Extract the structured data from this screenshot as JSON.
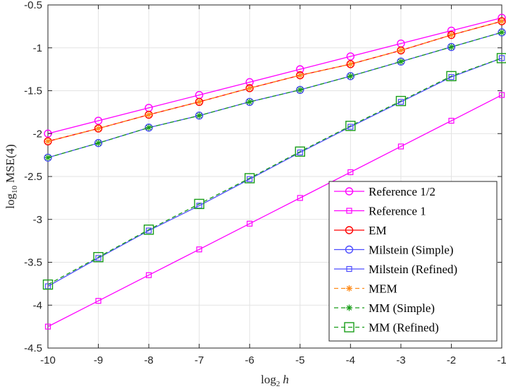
{
  "chart_data": {
    "type": "line",
    "title": "",
    "xlabel": "log₂ h",
    "xlabel_main": "log",
    "xlabel_sub": "2",
    "xlabel_var": "h",
    "ylabel": "log₁₀ MSE(4)",
    "ylabel_main": "log",
    "ylabel_sub": "10",
    "ylabel_rest": "MSE(4)",
    "xlim": [
      -10,
      -1
    ],
    "ylim": [
      -4.5,
      -0.5
    ],
    "grid": true,
    "legend_position": "bottom-right",
    "x": [
      -10,
      -9,
      -8,
      -7,
      -6,
      -5,
      -4,
      -3,
      -2,
      -1
    ],
    "x_tick_labels": [
      "-10",
      "-9",
      "-8",
      "-7",
      "-6",
      "-5",
      "-4",
      "-3",
      "-2",
      "-1"
    ],
    "y_ticks": [
      -0.5,
      -1,
      -1.5,
      -2,
      -2.5,
      -3,
      -3.5,
      -4,
      -4.5
    ],
    "y_tick_labels": [
      "-0.5",
      "-1",
      "-1.5",
      "-2",
      "-2.5",
      "-3",
      "-3.5",
      "-4",
      "-4.5"
    ],
    "series": [
      {
        "name": "Reference 1/2",
        "color": "#ff00ff",
        "marker": "circle",
        "dashed": false,
        "values": [
          -2.0,
          -1.85,
          -1.7,
          -1.55,
          -1.4,
          -1.25,
          -1.1,
          -0.95,
          -0.8,
          -0.65
        ]
      },
      {
        "name": "Reference 1",
        "color": "#ff00ff",
        "marker": "square-small",
        "dashed": false,
        "values": [
          -4.25,
          -3.95,
          -3.65,
          -3.35,
          -3.05,
          -2.75,
          -2.45,
          -2.15,
          -1.85,
          -1.55
        ]
      },
      {
        "name": "EM",
        "color": "#ff0000",
        "marker": "circle",
        "dashed": false,
        "values": [
          -2.09,
          -1.94,
          -1.78,
          -1.63,
          -1.47,
          -1.32,
          -1.19,
          -1.03,
          -0.85,
          -0.69
        ]
      },
      {
        "name": "Milstein (Simple)",
        "color": "#4d4dff",
        "marker": "circle",
        "dashed": false,
        "values": [
          -2.28,
          -2.11,
          -1.93,
          -1.79,
          -1.63,
          -1.49,
          -1.33,
          -1.16,
          -0.99,
          -0.82
        ]
      },
      {
        "name": "Milstein (Refined)",
        "color": "#4d4dff",
        "marker": "square-small",
        "dashed": false,
        "values": [
          -3.78,
          -3.45,
          -3.13,
          -2.84,
          -2.53,
          -2.22,
          -1.92,
          -1.63,
          -1.34,
          -1.12
        ]
      },
      {
        "name": "MEM",
        "color": "#ff8c1a",
        "marker": "star",
        "dashed": true,
        "values": [
          -2.09,
          -1.94,
          -1.78,
          -1.63,
          -1.47,
          -1.32,
          -1.19,
          -1.03,
          -0.85,
          -0.69
        ]
      },
      {
        "name": "MM (Simple)",
        "color": "#1a9e1a",
        "marker": "star",
        "dashed": true,
        "values": [
          -2.28,
          -2.11,
          -1.93,
          -1.79,
          -1.63,
          -1.49,
          -1.33,
          -1.16,
          -0.99,
          -0.82
        ]
      },
      {
        "name": "MM (Refined)",
        "color": "#1a9e1a",
        "marker": "square-large",
        "dashed": true,
        "values": [
          -3.76,
          -3.44,
          -3.12,
          -2.82,
          -2.52,
          -2.21,
          -1.91,
          -1.62,
          -1.33,
          -1.12
        ]
      }
    ]
  }
}
